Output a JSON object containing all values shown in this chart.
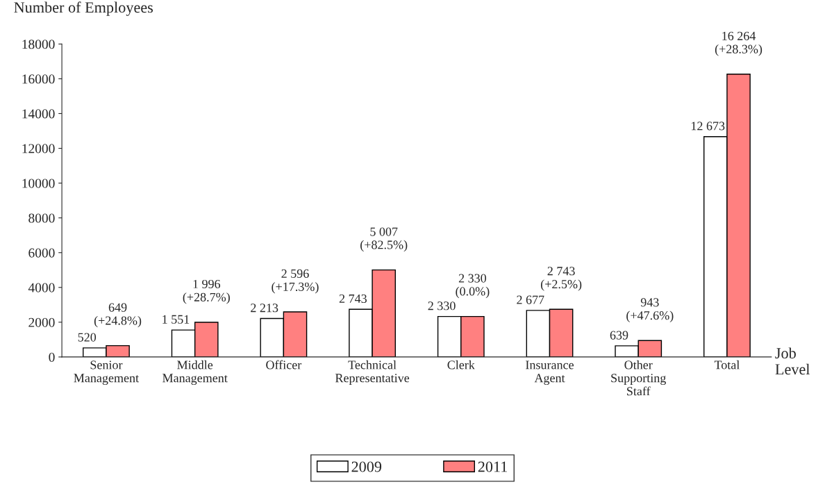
{
  "chart_data": {
    "type": "bar",
    "ylabel": "Number of Employees",
    "xlabel": "Job\nLevel",
    "categories": [
      "Senior\nManagement",
      "Middle\nManagement",
      "Officer",
      "Technical\nRepresentative",
      "Clerk",
      "Insurance\nAgent",
      "Other\nSupporting\nStaff",
      "Total"
    ],
    "series": [
      {
        "name": "2009",
        "color": "#ffffff",
        "values": [
          520,
          1551,
          2213,
          2743,
          2330,
          2677,
          639,
          12673
        ],
        "value_labels": [
          "520",
          "1 551",
          "2 213",
          "2 743",
          "2 330",
          "2 677",
          "639",
          "12 673"
        ]
      },
      {
        "name": "2011",
        "color": "#ff8080",
        "values": [
          649,
          1996,
          2596,
          5007,
          2330,
          2743,
          943,
          16264
        ],
        "value_labels": [
          "649\n(+24.8%)",
          "1 996\n(+28.7%)",
          "2 596\n(+17.3%)",
          "5 007\n(+82.5%)",
          "2 330\n(0.0%)",
          "2 743\n(+2.5%)",
          "943\n(+47.6%)",
          "16 264\n(+28.3%)"
        ]
      }
    ],
    "ylim": [
      0,
      18000
    ],
    "yticks": [
      0,
      2000,
      4000,
      6000,
      8000,
      10000,
      12000,
      14000,
      16000,
      18000
    ],
    "grid": false,
    "legend": "bottom"
  }
}
